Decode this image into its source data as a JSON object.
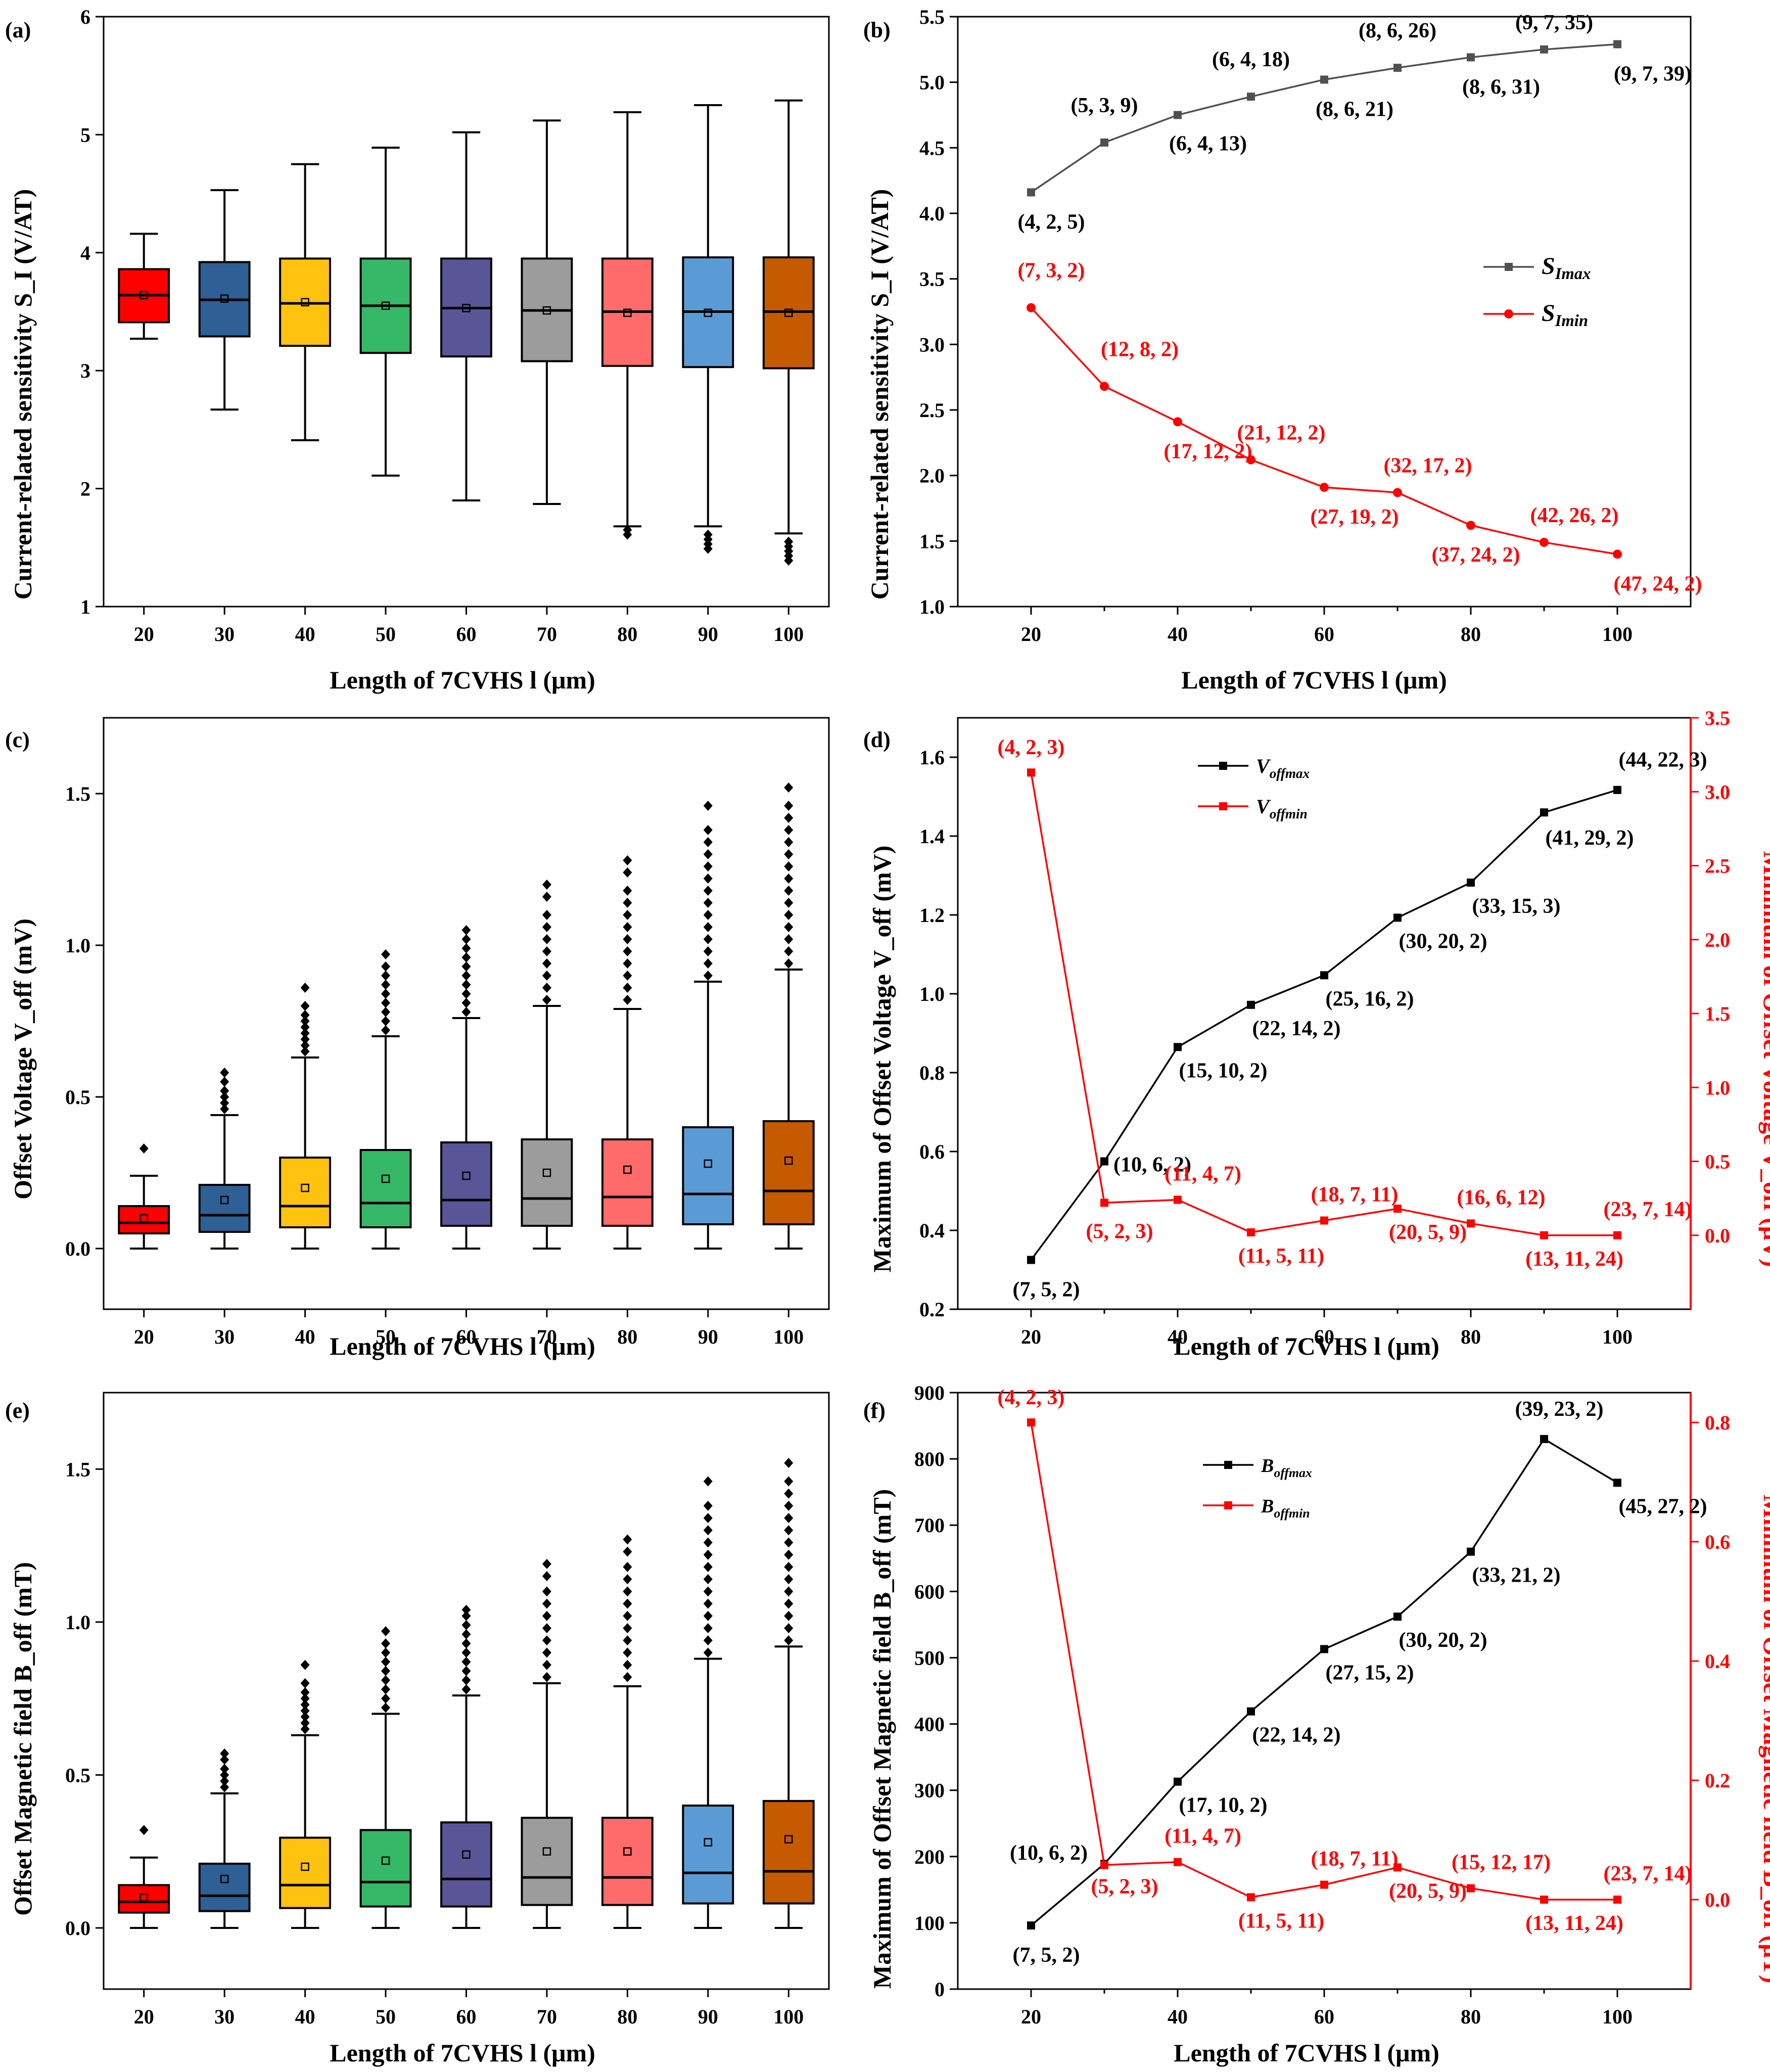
{
  "figure": {
    "axis_label_common": {
      "x": "Length of 7CVHS l (μm)"
    }
  },
  "chart_data": [
    {
      "panel": "(a)",
      "type": "box",
      "categories": [
        "20",
        "30",
        "40",
        "50",
        "60",
        "70",
        "80",
        "90",
        "100"
      ],
      "xlabel": "Length of 7CVHS l (μm)",
      "ylabel": "Current-related sensitivity S_I (V/AT)",
      "ylim": [
        1,
        6
      ],
      "yticks": [
        "1",
        "2",
        "3",
        "4",
        "5",
        "6"
      ],
      "colors": [
        "#ff0000",
        "#2e5f95",
        "#ffc20e",
        "#35b867",
        "#5a5596",
        "#9c9c9c",
        "#ff6a6a",
        "#5b9bd5",
        "#c55a00"
      ],
      "boxes": [
        {
          "min": 3.27,
          "q1": 3.41,
          "median": 3.64,
          "mean": 3.64,
          "q3": 3.86,
          "max": 4.16,
          "outliers": []
        },
        {
          "min": 2.67,
          "q1": 3.29,
          "median": 3.6,
          "mean": 3.61,
          "q3": 3.92,
          "max": 4.53,
          "outliers": []
        },
        {
          "min": 2.41,
          "q1": 3.21,
          "median": 3.57,
          "mean": 3.58,
          "q3": 3.95,
          "max": 4.75,
          "outliers": []
        },
        {
          "min": 2.11,
          "q1": 3.15,
          "median": 3.55,
          "mean": 3.55,
          "q3": 3.95,
          "max": 4.89,
          "outliers": []
        },
        {
          "min": 1.9,
          "q1": 3.12,
          "median": 3.53,
          "mean": 3.53,
          "q3": 3.95,
          "max": 5.02,
          "outliers": []
        },
        {
          "min": 1.87,
          "q1": 3.08,
          "median": 3.51,
          "mean": 3.51,
          "q3": 3.95,
          "max": 5.12,
          "outliers": []
        },
        {
          "min": 1.68,
          "q1": 3.04,
          "median": 3.5,
          "mean": 3.49,
          "q3": 3.95,
          "max": 5.19,
          "outliers": [
            1.61,
            1.65
          ]
        },
        {
          "min": 1.68,
          "q1": 3.03,
          "median": 3.5,
          "mean": 3.49,
          "q3": 3.96,
          "max": 5.25,
          "outliers": [
            1.49,
            1.53,
            1.57,
            1.61
          ]
        },
        {
          "min": 1.62,
          "q1": 3.02,
          "median": 3.5,
          "mean": 3.49,
          "q3": 3.96,
          "max": 5.29,
          "outliers": [
            1.39,
            1.43,
            1.47,
            1.51,
            1.55
          ]
        }
      ]
    },
    {
      "panel": "(b)",
      "type": "line",
      "x": [
        20,
        30,
        40,
        50,
        60,
        70,
        80,
        90,
        100
      ],
      "xlabel": "Length of 7CVHS l (μm)",
      "ylabel": "Current-related sensitivity S_I (V/AT)",
      "xticks": [
        "20",
        "40",
        "60",
        "80",
        "100"
      ],
      "ylim": [
        1.0,
        5.5
      ],
      "yticks": [
        "1.0",
        "1.5",
        "2.0",
        "2.5",
        "3.0",
        "3.5",
        "4.0",
        "4.5",
        "5.0",
        "5.5"
      ],
      "series": [
        {
          "name": "S_Imax",
          "color": "#505050",
          "marker": "square",
          "values": [
            4.16,
            4.54,
            4.75,
            4.89,
            5.02,
            5.11,
            5.19,
            5.25,
            5.29
          ],
          "labels": [
            "(4, 2, 5)",
            "(5, 3, 9)",
            "(6, 4, 13)",
            "(6, 4, 18)",
            "(8, 6, 21)",
            "(8, 6, 26)",
            "(8, 6, 31)",
            "(9, 7, 35)",
            "(9, 7, 39)"
          ]
        },
        {
          "name": "S_Imin",
          "color": "#ff0000",
          "marker": "circle",
          "values": [
            3.28,
            2.68,
            2.41,
            2.12,
            1.91,
            1.87,
            1.62,
            1.49,
            1.4
          ],
          "labels": [
            "(7, 3, 2)",
            "(12, 8, 2)",
            "(17, 12, 2)",
            "(21, 12, 2)",
            "(27, 19, 2)",
            "(32, 17, 2)",
            "(37, 24, 2)",
            "(42, 26, 2)",
            "(47, 24, 2)"
          ]
        }
      ]
    },
    {
      "panel": "(c)",
      "type": "box",
      "categories": [
        "20",
        "30",
        "40",
        "50",
        "60",
        "70",
        "80",
        "90",
        "100"
      ],
      "xlabel": "Length of 7CVHS l (μm)",
      "ylabel": "Offset Voltage V_off (mV)",
      "ylim": [
        -0.2,
        1.75
      ],
      "yticks": [
        "0.0",
        "0.5",
        "1.0",
        "1.5"
      ],
      "colors": [
        "#ff0000",
        "#2e5f95",
        "#ffc20e",
        "#35b867",
        "#5a5596",
        "#9c9c9c",
        "#ff6a6a",
        "#5b9bd5",
        "#c55a00"
      ],
      "boxes": [
        {
          "min": 0.0,
          "q1": 0.05,
          "median": 0.085,
          "mean": 0.1,
          "q3": 0.14,
          "max": 0.24,
          "outliers": [
            0.33
          ]
        },
        {
          "min": 0.0,
          "q1": 0.055,
          "median": 0.11,
          "mean": 0.16,
          "q3": 0.21,
          "max": 0.44,
          "outliers": [
            0.46,
            0.48,
            0.5,
            0.52,
            0.55,
            0.58
          ]
        },
        {
          "min": 0.0,
          "q1": 0.07,
          "median": 0.14,
          "mean": 0.2,
          "q3": 0.3,
          "max": 0.63,
          "outliers": [
            0.65,
            0.67,
            0.69,
            0.71,
            0.73,
            0.75,
            0.77,
            0.8,
            0.86
          ]
        },
        {
          "min": 0.0,
          "q1": 0.07,
          "median": 0.15,
          "mean": 0.23,
          "q3": 0.325,
          "max": 0.7,
          "outliers": [
            0.72,
            0.75,
            0.78,
            0.81,
            0.84,
            0.87,
            0.9,
            0.93,
            0.97
          ]
        },
        {
          "min": 0.0,
          "q1": 0.075,
          "median": 0.16,
          "mean": 0.24,
          "q3": 0.35,
          "max": 0.76,
          "outliers": [
            0.78,
            0.81,
            0.84,
            0.87,
            0.9,
            0.93,
            0.96,
            0.99,
            1.02,
            1.05
          ]
        },
        {
          "min": 0.0,
          "q1": 0.075,
          "median": 0.165,
          "mean": 0.25,
          "q3": 0.36,
          "max": 0.8,
          "outliers": [
            0.82,
            0.86,
            0.9,
            0.94,
            0.98,
            1.02,
            1.06,
            1.1,
            1.16,
            1.2
          ]
        },
        {
          "min": 0.0,
          "q1": 0.075,
          "median": 0.17,
          "mean": 0.26,
          "q3": 0.36,
          "max": 0.79,
          "outliers": [
            0.82,
            0.86,
            0.9,
            0.94,
            0.98,
            1.02,
            1.06,
            1.1,
            1.14,
            1.18,
            1.24,
            1.28
          ]
        },
        {
          "min": 0.0,
          "q1": 0.08,
          "median": 0.18,
          "mean": 0.28,
          "q3": 0.4,
          "max": 0.88,
          "outliers": [
            0.9,
            0.94,
            0.98,
            1.02,
            1.06,
            1.1,
            1.14,
            1.18,
            1.22,
            1.26,
            1.3,
            1.34,
            1.38,
            1.46
          ]
        },
        {
          "min": 0.0,
          "q1": 0.08,
          "median": 0.19,
          "mean": 0.29,
          "q3": 0.42,
          "max": 0.92,
          "outliers": [
            0.94,
            0.98,
            1.02,
            1.06,
            1.1,
            1.14,
            1.18,
            1.22,
            1.26,
            1.3,
            1.34,
            1.38,
            1.42,
            1.46,
            1.52
          ]
        }
      ]
    },
    {
      "panel": "(d)",
      "type": "line",
      "x": [
        20,
        30,
        40,
        50,
        60,
        70,
        80,
        90,
        100
      ],
      "xlabel": "Length of 7CVHS l (μm)",
      "ylabel": "Maximum of Offset Voltage V_off (mV)",
      "y2label": "Minimum of Offset Voltage V_off (μV)",
      "xticks": [
        "20",
        "40",
        "60",
        "80",
        "100"
      ],
      "ylim": [
        0.2,
        1.7
      ],
      "yticks": [
        "0.2",
        "0.4",
        "0.6",
        "0.8",
        "1.0",
        "1.2",
        "1.4",
        "1.6"
      ],
      "y2lim": [
        -0.5,
        3.5
      ],
      "y2ticks": [
        "0.0",
        "0.5",
        "1.0",
        "1.5",
        "2.0",
        "2.5",
        "3.0",
        "3.5"
      ],
      "series": [
        {
          "name": "V_offmax",
          "color": "#000000",
          "axis": "left",
          "values": [
            0.325,
            0.575,
            0.865,
            0.972,
            1.047,
            1.193,
            1.282,
            1.46,
            1.517
          ],
          "labels": [
            "(7, 5, 2)",
            "(10, 6, 2)",
            "(15, 10, 2)",
            "(22, 14, 2)",
            "(25, 16, 2)",
            "(30, 20, 2)",
            "(33, 15, 3)",
            "(41, 29, 2)",
            "(44, 22, 3)"
          ]
        },
        {
          "name": "V_offmin",
          "color": "#ff0000",
          "axis": "right",
          "values": [
            3.13,
            0.22,
            0.24,
            0.02,
            0.1,
            0.18,
            0.08,
            0.0,
            0.0
          ],
          "labels": [
            "(4, 2, 3)",
            "(5, 2, 3)",
            "(11, 4, 7)",
            "(11, 5, 11)",
            "(18, 7, 11)",
            "(20, 5, 9)",
            "(16, 6, 12)",
            "(13, 11, 24)",
            "(23, 7, 14)"
          ]
        }
      ]
    },
    {
      "panel": "(e)",
      "type": "box",
      "categories": [
        "20",
        "30",
        "40",
        "50",
        "60",
        "70",
        "80",
        "90",
        "100"
      ],
      "xlabel": "Length of 7CVHS l (μm)",
      "ylabel": "Offset Magnetic field B_off (mT)",
      "ylim": [
        -0.2,
        1.75
      ],
      "yticks": [
        "0.0",
        "0.5",
        "1.0",
        "1.5"
      ],
      "colors": [
        "#ff0000",
        "#2e5f95",
        "#ffc20e",
        "#35b867",
        "#5a5596",
        "#9c9c9c",
        "#ff6a6a",
        "#5b9bd5",
        "#c55a00"
      ],
      "boxes": [
        {
          "min": 0.0,
          "q1": 0.05,
          "median": 0.085,
          "mean": 0.1,
          "q3": 0.14,
          "max": 0.23,
          "outliers": [
            0.32
          ]
        },
        {
          "min": 0.0,
          "q1": 0.055,
          "median": 0.105,
          "mean": 0.16,
          "q3": 0.21,
          "max": 0.44,
          "outliers": [
            0.46,
            0.48,
            0.5,
            0.52,
            0.55,
            0.57
          ]
        },
        {
          "min": 0.0,
          "q1": 0.065,
          "median": 0.14,
          "mean": 0.2,
          "q3": 0.295,
          "max": 0.63,
          "outliers": [
            0.65,
            0.67,
            0.69,
            0.71,
            0.73,
            0.75,
            0.77,
            0.8,
            0.86
          ]
        },
        {
          "min": 0.0,
          "q1": 0.07,
          "median": 0.15,
          "mean": 0.22,
          "q3": 0.32,
          "max": 0.7,
          "outliers": [
            0.72,
            0.75,
            0.78,
            0.81,
            0.84,
            0.87,
            0.9,
            0.93,
            0.97
          ]
        },
        {
          "min": 0.0,
          "q1": 0.07,
          "median": 0.16,
          "mean": 0.24,
          "q3": 0.345,
          "max": 0.76,
          "outliers": [
            0.78,
            0.81,
            0.84,
            0.87,
            0.9,
            0.93,
            0.96,
            0.99,
            1.02,
            1.04
          ]
        },
        {
          "min": 0.0,
          "q1": 0.075,
          "median": 0.165,
          "mean": 0.25,
          "q3": 0.36,
          "max": 0.8,
          "outliers": [
            0.82,
            0.86,
            0.9,
            0.94,
            0.98,
            1.02,
            1.06,
            1.1,
            1.15,
            1.19
          ]
        },
        {
          "min": 0.0,
          "q1": 0.075,
          "median": 0.165,
          "mean": 0.25,
          "q3": 0.36,
          "max": 0.79,
          "outliers": [
            0.82,
            0.86,
            0.9,
            0.94,
            0.98,
            1.02,
            1.06,
            1.1,
            1.14,
            1.18,
            1.23,
            1.27
          ]
        },
        {
          "min": 0.0,
          "q1": 0.08,
          "median": 0.18,
          "mean": 0.28,
          "q3": 0.4,
          "max": 0.88,
          "outliers": [
            0.9,
            0.94,
            0.98,
            1.02,
            1.06,
            1.1,
            1.14,
            1.18,
            1.22,
            1.26,
            1.3,
            1.34,
            1.38,
            1.46
          ]
        },
        {
          "min": 0.0,
          "q1": 0.08,
          "median": 0.185,
          "mean": 0.29,
          "q3": 0.415,
          "max": 0.92,
          "outliers": [
            0.94,
            0.98,
            1.02,
            1.06,
            1.1,
            1.14,
            1.18,
            1.22,
            1.26,
            1.3,
            1.34,
            1.38,
            1.42,
            1.46,
            1.52
          ]
        }
      ]
    },
    {
      "panel": "(f)",
      "type": "line",
      "x": [
        20,
        30,
        40,
        50,
        60,
        70,
        80,
        90,
        100
      ],
      "xlabel": "Length of 7CVHS l (μm)",
      "ylabel": "Maximum of Offset Magnetic field B_off (mT)",
      "y2label": "Minimum of Offset Magnetic field B_off (μT)",
      "xticks": [
        "20",
        "40",
        "60",
        "80",
        "100"
      ],
      "ylim": [
        0,
        900
      ],
      "yticks": [
        "0",
        "100",
        "200",
        "300",
        "400",
        "500",
        "600",
        "700",
        "800",
        "900"
      ],
      "y2lim": [
        -0.15,
        0.85
      ],
      "y2ticks": [
        "0.0",
        "0.2",
        "0.4",
        "0.6",
        "0.8"
      ],
      "series": [
        {
          "name": "B_offmax",
          "color": "#000000",
          "axis": "left",
          "values": [
            96,
            189,
            313,
            419,
            513,
            562,
            660,
            830,
            764
          ],
          "labels": [
            "(7, 5, 2)",
            "(10, 6, 2)",
            "(17, 10, 2)",
            "(22, 14, 2)",
            "(27, 15, 2)",
            "(30, 20, 2)",
            "(33, 21, 2)",
            "(39, 23, 2)",
            "(45, 27, 2)"
          ]
        },
        {
          "name": "B_offmin",
          "color": "#ff0000",
          "axis": "right",
          "values": [
            0.8,
            0.058,
            0.063,
            0.004,
            0.025,
            0.054,
            0.019,
            0.0,
            0.0
          ],
          "labels": [
            "(4, 2, 3)",
            "(5, 2, 3)",
            "(11, 4, 7)",
            "(11, 5, 11)",
            "(18, 7, 11)",
            "(20, 5, 9)",
            "(15, 12, 17)",
            "(13, 11, 24)",
            "(23, 7, 14)"
          ]
        }
      ]
    }
  ]
}
